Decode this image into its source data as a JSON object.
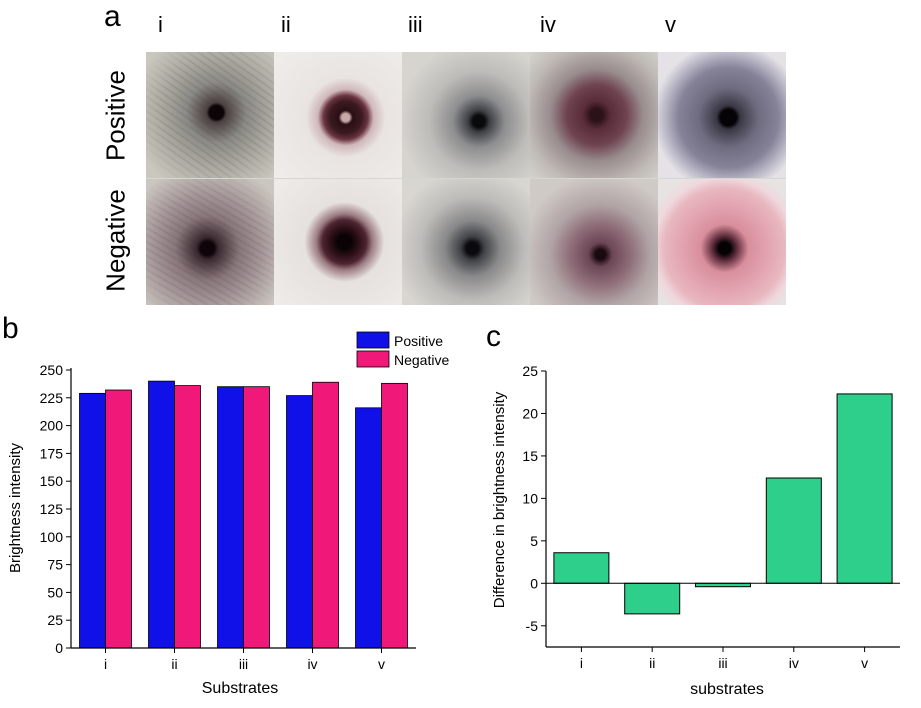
{
  "panel_a": {
    "letter": "a",
    "columns": [
      "i",
      "ii",
      "iii",
      "iv",
      "v"
    ],
    "rows": [
      "Positive",
      "Negative"
    ]
  },
  "panel_b": {
    "letter": "b"
  },
  "panel_c": {
    "letter": "c"
  },
  "colors": {
    "positive": "#1010e8",
    "negative": "#f0197a",
    "difference": "#2ecf8a"
  },
  "chart_data": [
    {
      "type": "bar",
      "title": "",
      "xlabel": "Substrates",
      "ylabel": "Brightness intensity",
      "categories": [
        "i",
        "ii",
        "iii",
        "iv",
        "v"
      ],
      "series": [
        {
          "name": "Positive",
          "values": [
            229,
            240,
            235,
            227,
            216
          ]
        },
        {
          "name": "Negative",
          "values": [
            232,
            236,
            235,
            239,
            238
          ]
        }
      ],
      "ylim": [
        0,
        250
      ],
      "yticks": [
        0,
        25,
        50,
        75,
        100,
        125,
        150,
        175,
        200,
        225,
        250
      ],
      "legend": "top-right"
    },
    {
      "type": "bar",
      "title": "",
      "xlabel": "substrates",
      "ylabel": "Difference in brightness intensity",
      "categories": [
        "i",
        "ii",
        "iii",
        "iv",
        "v"
      ],
      "values": [
        3.6,
        -3.6,
        -0.4,
        12.4,
        22.3
      ],
      "ylim": [
        -7.5,
        25
      ],
      "yticks": [
        -5,
        0,
        5,
        10,
        15,
        20,
        25
      ]
    }
  ]
}
